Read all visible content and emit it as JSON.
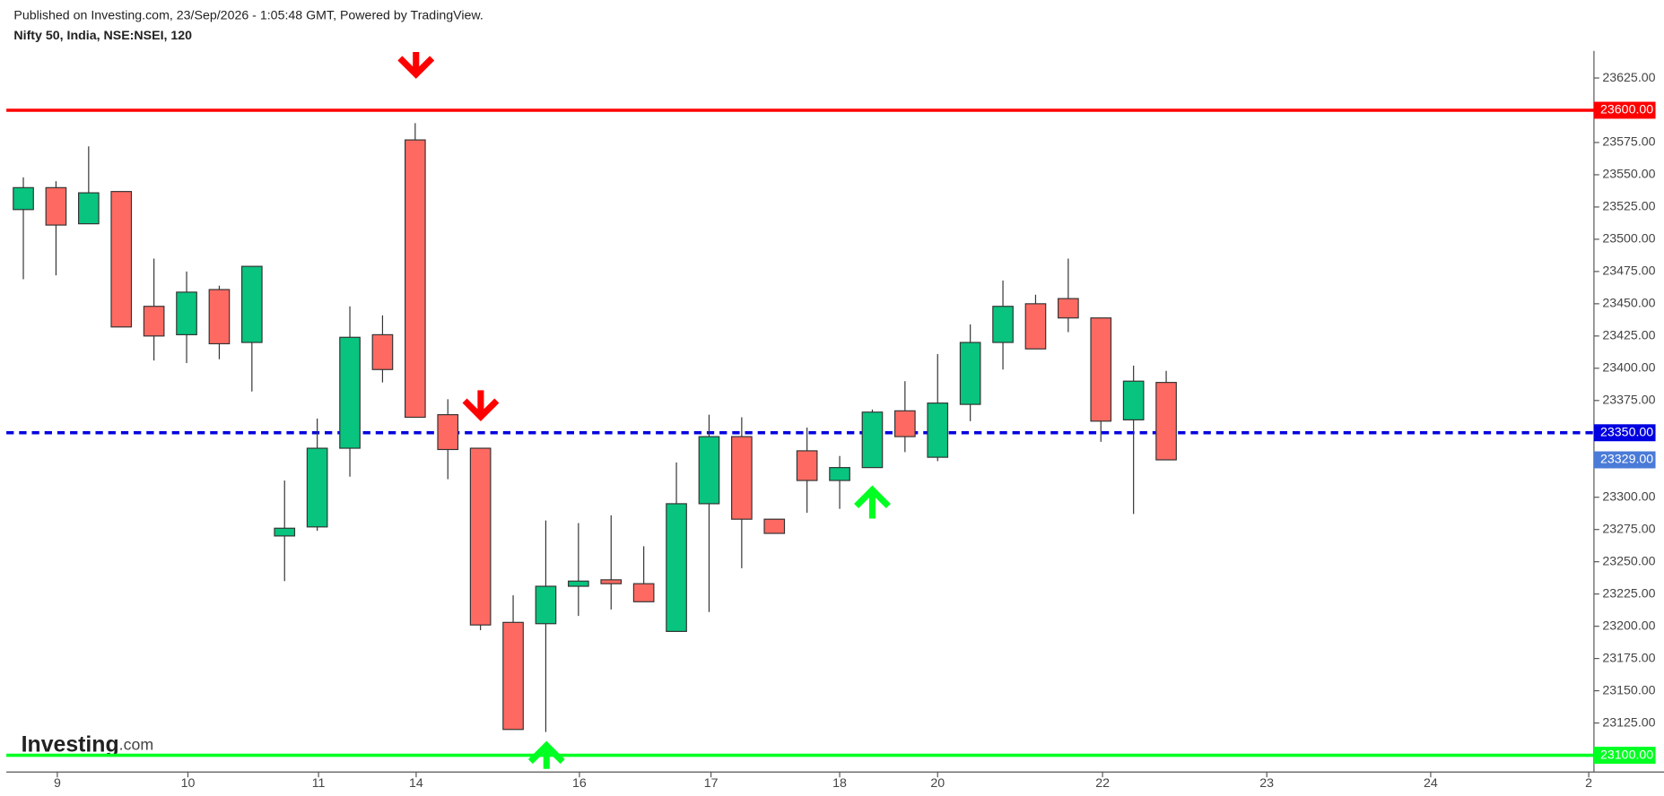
{
  "header": {
    "published": "Published on Investing.com, 23/Sep/2026 - 1:05:48 GMT, Powered by TradingView.",
    "instrument": "Nifty 50, India, NSE:NSEI, 120"
  },
  "logo": {
    "name": "Investing",
    "suffix": ".com"
  },
  "chart_data": {
    "type": "candlestick",
    "open": [
      23523,
      23540,
      23512,
      23537,
      23448,
      23426,
      23461,
      23420,
      23270,
      23277,
      23338,
      23426,
      23577,
      23364,
      23338,
      23203,
      23202,
      23231,
      23236,
      23233,
      23196,
      23295,
      23347,
      23283,
      23336,
      23313,
      23323,
      23367,
      23331,
      23372,
      23420,
      23450,
      23454,
      23439,
      23360,
      23389
    ],
    "high": [
      23548,
      23545,
      23572,
      23537,
      23485,
      23475,
      23464,
      23479,
      23313,
      23361,
      23448,
      23441,
      23590,
      23376,
      23338,
      23224,
      23282,
      23280,
      23286,
      23262,
      23327,
      23364,
      23362,
      23283,
      23354,
      23332,
      23368,
      23390,
      23411,
      23434,
      23468,
      23457,
      23485,
      23439,
      23402,
      23398
    ],
    "low": [
      23469,
      23472,
      23512,
      23432,
      23406,
      23404,
      23407,
      23382,
      23235,
      23274,
      23316,
      23389,
      23362,
      23314,
      23197,
      23120,
      23118,
      23208,
      23213,
      23219,
      23196,
      23211,
      23245,
      23272,
      23288,
      23291,
      23323,
      23335,
      23328,
      23359,
      23399,
      23415,
      23428,
      23343,
      23287,
      23329
    ],
    "close": [
      23540,
      23511,
      23536,
      23432,
      23425,
      23459,
      23419,
      23479,
      23276,
      23338,
      23424,
      23399,
      23362,
      23337,
      23201,
      23120,
      23231,
      23235,
      23233,
      23219,
      23295,
      23347,
      23283,
      23272,
      23313,
      23323,
      23366,
      23347,
      23373,
      23420,
      23448,
      23415,
      23439,
      23359,
      23390,
      23329
    ],
    "up_color": "#08c47f",
    "down_color": "#fe6a62",
    "xlim": [
      -0.52,
      48.1
    ],
    "xticks": [
      {
        "value": 1.04,
        "label": "9"
      },
      {
        "value": 5.04,
        "label": "10"
      },
      {
        "value": 9.04,
        "label": "11"
      },
      {
        "value": 12.03,
        "label": "14"
      },
      {
        "value": 17.03,
        "label": "16"
      },
      {
        "value": 21.06,
        "label": "17"
      },
      {
        "value": 25.0,
        "label": "18"
      },
      {
        "value": 28.0,
        "label": "20"
      },
      {
        "value": 33.05,
        "label": "22"
      },
      {
        "value": 38.08,
        "label": "23"
      },
      {
        "value": 43.1,
        "label": "24"
      },
      {
        "value": 47.94,
        "label": "2"
      }
    ],
    "ylim": [
      23087,
      23646
    ],
    "yticks": [
      {
        "value": 23125,
        "label": "23125.00"
      },
      {
        "value": 23150,
        "label": "23150.00"
      },
      {
        "value": 23175,
        "label": "23175.00"
      },
      {
        "value": 23200,
        "label": "23200.00"
      },
      {
        "value": 23225,
        "label": "23225.00"
      },
      {
        "value": 23250,
        "label": "23250.00"
      },
      {
        "value": 23275,
        "label": "23275.00"
      },
      {
        "value": 23300,
        "label": "23300.00"
      },
      {
        "value": 23325,
        "label": "23325.00"
      },
      {
        "value": 23375,
        "label": "23375.00"
      },
      {
        "value": 23400,
        "label": "23400.00"
      },
      {
        "value": 23425,
        "label": "23425.00"
      },
      {
        "value": 23450,
        "label": "23450.00"
      },
      {
        "value": 23475,
        "label": "23475.00"
      },
      {
        "value": 23500,
        "label": "23500.00"
      },
      {
        "value": 23525,
        "label": "23525.00"
      },
      {
        "value": 23550,
        "label": "23550.00"
      },
      {
        "value": 23575,
        "label": "23575.00"
      },
      {
        "value": 23625,
        "label": "23625.00"
      }
    ],
    "hlines": [
      {
        "value": 23600,
        "label": "23600.00",
        "color": "#ff0000",
        "dashed": false
      },
      {
        "value": 23350,
        "label": "23350.00",
        "color": "#0000e0",
        "dashed": true
      },
      {
        "value": 23100,
        "label": "23100.00",
        "color": "#00ff22",
        "dashed": false
      }
    ],
    "last_price": {
      "value": 23329,
      "label": "23329.00",
      "color": "#4a7bd8"
    }
  }
}
